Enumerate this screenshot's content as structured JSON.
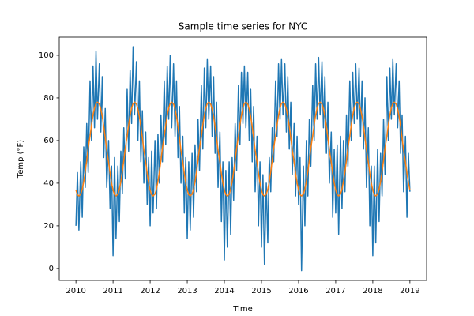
{
  "chart_data": {
    "type": "line",
    "title": "Sample time series for NYC",
    "x_label": "Time",
    "y_label": "Temp (°F)",
    "xlim": [
      2009.55,
      2019.45
    ],
    "ylim": [
      -5.6,
      108.5
    ],
    "xticks": [
      2010,
      2011,
      2012,
      2013,
      2014,
      2015,
      2016,
      2017,
      2018,
      2019
    ],
    "yticks": [
      0,
      20,
      40,
      60,
      80,
      100
    ],
    "x": [
      2010,
      2010.04,
      2010.08,
      2010.13,
      2010.17,
      2010.21,
      2010.25,
      2010.29,
      2010.33,
      2010.38,
      2010.42,
      2010.46,
      2010.5,
      2010.54,
      2010.58,
      2010.63,
      2010.67,
      2010.71,
      2010.75,
      2010.79,
      2010.83,
      2010.88,
      2010.92,
      2010.96,
      2011,
      2011.04,
      2011.08,
      2011.13,
      2011.17,
      2011.21,
      2011.25,
      2011.29,
      2011.33,
      2011.38,
      2011.42,
      2011.46,
      2011.5,
      2011.54,
      2011.58,
      2011.63,
      2011.67,
      2011.71,
      2011.75,
      2011.79,
      2011.83,
      2011.88,
      2011.92,
      2011.96,
      2012,
      2012.04,
      2012.08,
      2012.13,
      2012.17,
      2012.21,
      2012.25,
      2012.29,
      2012.33,
      2012.38,
      2012.42,
      2012.46,
      2012.5,
      2012.54,
      2012.58,
      2012.63,
      2012.67,
      2012.71,
      2012.75,
      2012.79,
      2012.83,
      2012.88,
      2012.92,
      2012.96,
      2013,
      2013.04,
      2013.08,
      2013.13,
      2013.17,
      2013.21,
      2013.25,
      2013.29,
      2013.33,
      2013.38,
      2013.42,
      2013.46,
      2013.5,
      2013.54,
      2013.58,
      2013.63,
      2013.67,
      2013.71,
      2013.75,
      2013.79,
      2013.83,
      2013.88,
      2013.92,
      2013.96,
      2014,
      2014.04,
      2014.08,
      2014.13,
      2014.17,
      2014.21,
      2014.25,
      2014.29,
      2014.33,
      2014.38,
      2014.42,
      2014.46,
      2014.5,
      2014.54,
      2014.58,
      2014.63,
      2014.67,
      2014.71,
      2014.75,
      2014.79,
      2014.83,
      2014.88,
      2014.92,
      2014.96,
      2015,
      2015.04,
      2015.08,
      2015.13,
      2015.17,
      2015.21,
      2015.25,
      2015.29,
      2015.33,
      2015.38,
      2015.42,
      2015.46,
      2015.5,
      2015.54,
      2015.58,
      2015.63,
      2015.67,
      2015.71,
      2015.75,
      2015.79,
      2015.83,
      2015.88,
      2015.92,
      2015.96,
      2016,
      2016.04,
      2016.08,
      2016.13,
      2016.17,
      2016.21,
      2016.25,
      2016.29,
      2016.33,
      2016.38,
      2016.42,
      2016.46,
      2016.5,
      2016.54,
      2016.58,
      2016.63,
      2016.67,
      2016.71,
      2016.75,
      2016.79,
      2016.83,
      2016.88,
      2016.92,
      2016.96,
      2017,
      2017.04,
      2017.08,
      2017.13,
      2017.17,
      2017.21,
      2017.25,
      2017.29,
      2017.33,
      2017.38,
      2017.42,
      2017.46,
      2017.5,
      2017.54,
      2017.58,
      2017.63,
      2017.67,
      2017.71,
      2017.75,
      2017.79,
      2017.83,
      2017.88,
      2017.92,
      2017.96,
      2018,
      2018.04,
      2018.08,
      2018.13,
      2018.17,
      2018.21,
      2018.25,
      2018.29,
      2018.33,
      2018.38,
      2018.42,
      2018.46,
      2018.5,
      2018.54,
      2018.58,
      2018.63,
      2018.67,
      2018.71,
      2018.75,
      2018.79,
      2018.83,
      2018.88,
      2018.92,
      2018.96,
      2019
    ],
    "series": [
      {
        "color": "#1f77b4",
        "values": [
          20,
          45,
          18,
          50,
          24,
          57,
          38,
          68,
          45,
          88,
          60,
          95,
          66,
          102,
          70,
          96,
          64,
          90,
          52,
          75,
          38,
          60,
          28,
          48,
          6,
          52,
          14,
          48,
          22,
          55,
          35,
          66,
          42,
          84,
          55,
          93,
          68,
          104,
          72,
          97,
          60,
          88,
          50,
          74,
          40,
          64,
          30,
          52,
          20,
          55,
          26,
          60,
          28,
          63,
          40,
          72,
          50,
          88,
          58,
          95,
          70,
          100,
          66,
          96,
          62,
          88,
          52,
          76,
          40,
          62,
          26,
          52,
          14,
          50,
          18,
          54,
          24,
          58,
          36,
          70,
          46,
          86,
          56,
          94,
          66,
          98,
          70,
          95,
          62,
          90,
          54,
          78,
          38,
          64,
          22,
          50,
          4,
          46,
          10,
          50,
          16,
          52,
          32,
          68,
          46,
          86,
          58,
          92,
          68,
          95,
          66,
          92,
          60,
          84,
          50,
          76,
          36,
          62,
          20,
          50,
          10,
          44,
          2,
          40,
          12,
          52,
          36,
          66,
          50,
          88,
          62,
          96,
          70,
          98,
          72,
          96,
          64,
          90,
          56,
          78,
          44,
          68,
          34,
          62,
          30,
          52,
          -1,
          48,
          20,
          60,
          34,
          70,
          48,
          86,
          60,
          96,
          70,
          99,
          72,
          97,
          66,
          90,
          54,
          78,
          40,
          64,
          24,
          56,
          26,
          58,
          16,
          62,
          28,
          60,
          36,
          72,
          48,
          88,
          60,
          92,
          68,
          96,
          70,
          94,
          62,
          88,
          56,
          80,
          38,
          66,
          20,
          48,
          6,
          48,
          12,
          56,
          22,
          54,
          34,
          70,
          44,
          90,
          60,
          94,
          70,
          98,
          72,
          96,
          66,
          88,
          54,
          72,
          36,
          62,
          24,
          54,
          36
        ]
      },
      {
        "color": "#ff7f0e",
        "values": [
          36.7,
          34.6,
          34.0,
          34.9,
          37.2,
          40.8,
          45.4,
          50.7,
          56.5,
          62.1,
          67.4,
          71.9,
          75.3,
          77.4,
          78.0,
          77.1,
          74.8,
          71.2,
          66.6,
          61.3,
          55.5,
          49.9,
          44.6,
          40.1,
          36.7,
          34.6,
          34.0,
          34.9,
          37.2,
          40.8,
          45.4,
          50.7,
          56.5,
          62.1,
          67.4,
          71.9,
          75.3,
          77.4,
          78.0,
          77.1,
          74.8,
          71.2,
          66.6,
          61.3,
          55.5,
          49.9,
          44.6,
          40.1,
          36.7,
          34.6,
          34.0,
          34.9,
          37.2,
          40.8,
          45.4,
          50.7,
          56.5,
          62.1,
          67.4,
          71.9,
          75.3,
          77.4,
          78.0,
          77.1,
          74.8,
          71.2,
          66.6,
          61.3,
          55.5,
          49.9,
          44.6,
          40.1,
          36.7,
          34.6,
          34.0,
          34.9,
          37.2,
          40.8,
          45.4,
          50.7,
          56.5,
          62.1,
          67.4,
          71.9,
          75.3,
          77.4,
          78.0,
          77.1,
          74.8,
          71.2,
          66.6,
          61.3,
          55.5,
          49.9,
          44.6,
          40.1,
          36.7,
          34.6,
          34.0,
          34.9,
          37.2,
          40.8,
          45.4,
          50.7,
          56.5,
          62.1,
          67.4,
          71.9,
          75.3,
          77.4,
          78.0,
          77.1,
          74.8,
          71.2,
          66.6,
          61.3,
          55.5,
          49.9,
          44.6,
          40.1,
          36.7,
          34.6,
          34.0,
          34.9,
          37.2,
          40.8,
          45.4,
          50.7,
          56.5,
          62.1,
          67.4,
          71.9,
          75.3,
          77.4,
          78.0,
          77.1,
          74.8,
          71.2,
          66.6,
          61.3,
          55.5,
          49.9,
          44.6,
          40.1,
          36.7,
          34.6,
          34.0,
          34.9,
          37.2,
          40.8,
          45.4,
          50.7,
          56.5,
          62.1,
          67.4,
          71.9,
          75.3,
          77.4,
          78.0,
          77.1,
          74.8,
          71.2,
          66.6,
          61.3,
          55.5,
          49.9,
          44.6,
          40.1,
          36.7,
          34.6,
          34.0,
          34.9,
          37.2,
          40.8,
          45.4,
          50.7,
          56.5,
          62.1,
          67.4,
          71.9,
          75.3,
          77.4,
          78.0,
          77.1,
          74.8,
          71.2,
          66.6,
          61.3,
          55.5,
          49.9,
          44.6,
          40.1,
          36.7,
          34.6,
          34.0,
          34.9,
          37.2,
          40.8,
          45.4,
          50.7,
          56.5,
          62.1,
          67.4,
          71.9,
          75.3,
          77.4,
          78.0,
          77.1,
          74.8,
          71.2,
          66.6,
          61.3,
          55.5,
          49.9,
          44.6,
          40.1,
          36.7
        ]
      }
    ]
  }
}
